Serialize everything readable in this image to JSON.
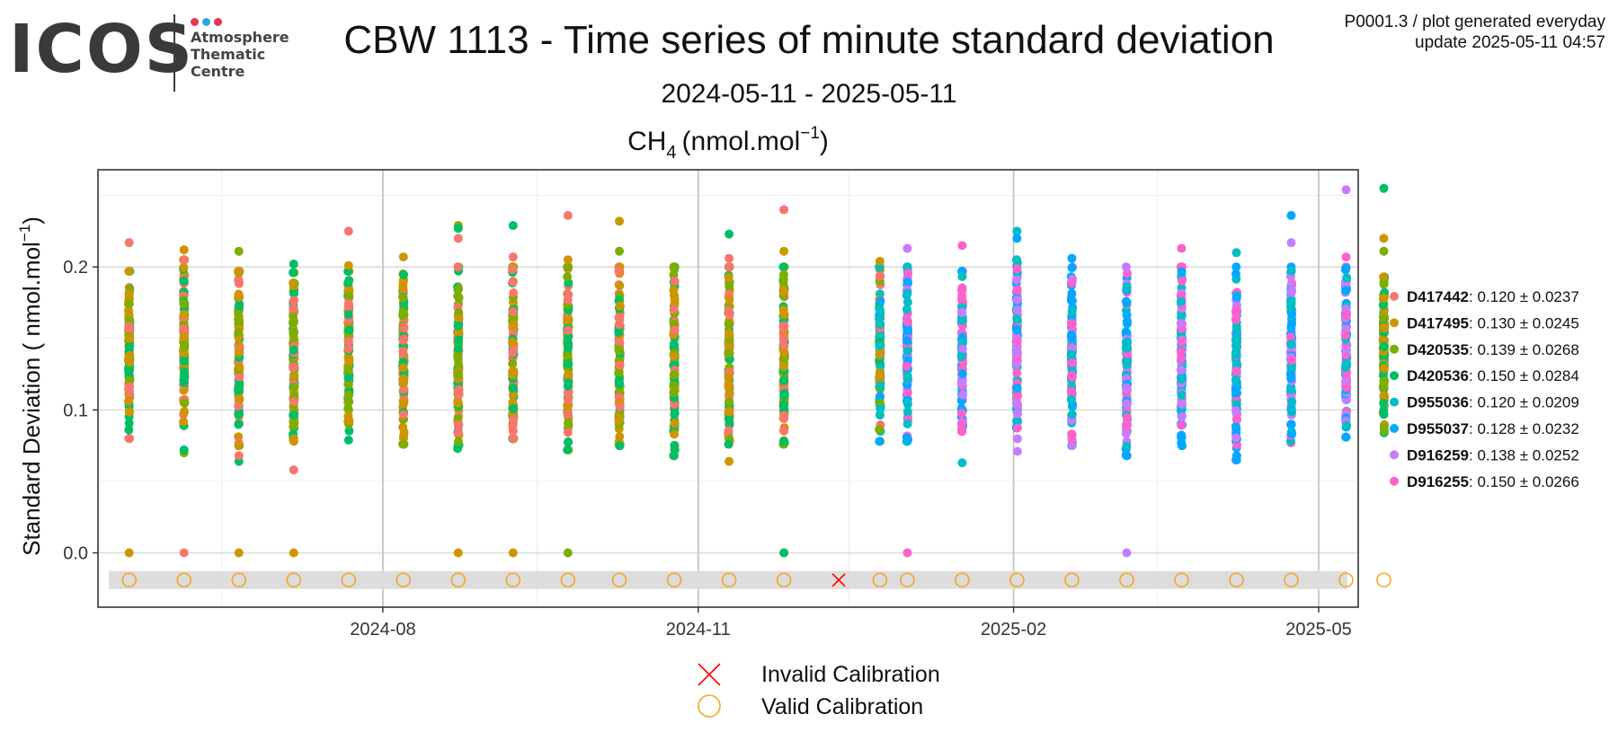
{
  "header": {
    "title": "CBW 1113 - Time series of minute standard deviation",
    "subtitle": "2024-05-11 - 2025-05-11",
    "meta_line1": "P0001.3 / plot generated everyday",
    "meta_line2": "update  2025-05-11 04:57"
  },
  "logo": {
    "wordmark": "ICOS",
    "line1": "Atmosphere",
    "line2": "Thematic",
    "line3": "Centre",
    "dot_colors": [
      "#e8335d",
      "#2ea3e8",
      "#e8335d"
    ]
  },
  "chart_data": {
    "type": "scatter",
    "species": "CH",
    "species_sub": "4",
    "unit_label": "(nmol.mol",
    "unit_sup": "−1",
    "ylabel": "Standard Deviation ( nmol.mol",
    "ylabel_sup": "−1",
    "x_range": [
      "2024-05-11",
      "2025-05-11"
    ],
    "x_ticks": [
      "2024-08-01",
      "2024-11-01",
      "2025-02-01",
      "2025-05-01"
    ],
    "x_tick_labels": [
      "2024-08",
      "2024-11",
      "2025-02",
      "2025-05"
    ],
    "ylim": [
      -0.038,
      0.268
    ],
    "y_ticks": [
      0.0,
      0.1,
      0.2
    ],
    "y_tick_labels": [
      "0.0",
      "0.1",
      "0.2"
    ],
    "grid": true,
    "legend_position": "right",
    "series": [
      {
        "name": "D417442",
        "stats": ": 0.120 ± 0.0237",
        "color": "#F8766D"
      },
      {
        "name": "D417495",
        "stats": ": 0.130 ± 0.0245",
        "color": "#CD9600"
      },
      {
        "name": "D420535",
        "stats": ": 0.139 ± 0.0268",
        "color": "#7CAE00"
      },
      {
        "name": "D420536",
        "stats": ": 0.150 ± 0.0284",
        "color": "#00BE67"
      },
      {
        "name": "D955036",
        "stats": ": 0.120 ± 0.0209",
        "color": "#00BFC4"
      },
      {
        "name": "D955037",
        "stats": ": 0.128 ± 0.0232",
        "color": "#00A9FF"
      },
      {
        "name": "D916259",
        "stats": ": 0.138 ± 0.0252",
        "color": "#C77CFF"
      },
      {
        "name": "D916255",
        "stats": ": 0.150 ± 0.0266",
        "color": "#FF61CC"
      }
    ],
    "measurement_days": [
      {
        "date": "2024-05-19",
        "instruments": [
          "D417442",
          "D417495",
          "D420535",
          "D420536"
        ],
        "low": 0.08,
        "high": 0.197,
        "outliers": [
          0.217,
          0.0
        ]
      },
      {
        "date": "2024-06-04",
        "instruments": [
          "D417442",
          "D417495",
          "D420535",
          "D420536"
        ],
        "low": 0.089,
        "high": 0.205,
        "outliers": [
          0.212,
          0.07,
          0.072,
          0.0
        ]
      },
      {
        "date": "2024-06-20",
        "instruments": [
          "D417442",
          "D417495",
          "D420535",
          "D420536"
        ],
        "low": 0.075,
        "high": 0.197,
        "outliers": [
          0.211,
          0.064,
          0.068,
          0.0
        ]
      },
      {
        "date": "2024-07-06",
        "instruments": [
          "D417442",
          "D417495",
          "D420535",
          "D420536"
        ],
        "low": 0.078,
        "high": 0.196,
        "outliers": [
          0.202,
          0.058,
          0.0
        ]
      },
      {
        "date": "2024-07-22",
        "instruments": [
          "D417442",
          "D417495",
          "D420535",
          "D420536"
        ],
        "low": 0.078,
        "high": 0.197,
        "outliers": [
          0.225,
          0.201
        ]
      },
      {
        "date": "2024-08-07",
        "instruments": [
          "D417442",
          "D417495",
          "D420535",
          "D420536"
        ],
        "low": 0.076,
        "high": 0.2,
        "outliers": [
          0.207
        ]
      },
      {
        "date": "2024-08-23",
        "instruments": [
          "D417442",
          "D417495",
          "D420535",
          "D420536"
        ],
        "low": 0.073,
        "high": 0.2,
        "outliers": [
          0.229,
          0.227,
          0.22,
          0.0
        ]
      },
      {
        "date": "2024-09-08",
        "instruments": [
          "D417442",
          "D417495",
          "D420535",
          "D420536"
        ],
        "low": 0.08,
        "high": 0.2,
        "outliers": [
          0.229,
          0.207,
          0.0
        ]
      },
      {
        "date": "2024-09-24",
        "instruments": [
          "D417442",
          "D417495",
          "D420535",
          "D420536"
        ],
        "low": 0.072,
        "high": 0.2,
        "outliers": [
          0.236,
          0.205,
          0.0
        ]
      },
      {
        "date": "2024-10-09",
        "instruments": [
          "D417442",
          "D417495",
          "D420535",
          "D420536"
        ],
        "low": 0.075,
        "high": 0.2,
        "outliers": [
          0.232,
          0.211
        ]
      },
      {
        "date": "2024-10-25",
        "instruments": [
          "D417442",
          "D417495",
          "D420535",
          "D420536"
        ],
        "low": 0.068,
        "high": 0.2,
        "outliers": [
          0.2
        ]
      },
      {
        "date": "2024-11-10",
        "instruments": [
          "D417442",
          "D417495",
          "D420535",
          "D420536"
        ],
        "low": 0.076,
        "high": 0.2,
        "outliers": [
          0.223,
          0.206,
          0.064
        ]
      },
      {
        "date": "2024-11-26",
        "instruments": [
          "D417442",
          "D417495",
          "D420535",
          "D420536"
        ],
        "low": 0.076,
        "high": 0.2,
        "outliers": [
          0.24,
          0.211,
          0.0,
          0.0
        ]
      },
      {
        "date": "2024-12-24",
        "instruments": [
          "D417442",
          "D417495",
          "D420535",
          "D420536",
          "D955036",
          "D955037"
        ],
        "low": 0.078,
        "high": 0.2,
        "outliers": [
          0.204
        ]
      },
      {
        "date": "2025-01-01",
        "instruments": [
          "D955036",
          "D955037",
          "D916259",
          "D916255"
        ],
        "low": 0.078,
        "high": 0.2,
        "outliers": [
          0.213,
          0.0
        ]
      },
      {
        "date": "2025-01-17",
        "instruments": [
          "D955036",
          "D955037",
          "D916259",
          "D916255"
        ],
        "low": 0.085,
        "high": 0.197,
        "outliers": [
          0.215,
          0.063
        ]
      },
      {
        "date": "2025-02-02",
        "instruments": [
          "D955036",
          "D955037",
          "D916259",
          "D916255"
        ],
        "low": 0.071,
        "high": 0.205,
        "outliers": [
          0.225,
          0.22
        ]
      },
      {
        "date": "2025-02-18",
        "instruments": [
          "D955036",
          "D955037",
          "D916259",
          "D916255"
        ],
        "low": 0.075,
        "high": 0.2,
        "outliers": [
          0.206
        ]
      },
      {
        "date": "2025-03-06",
        "instruments": [
          "D955036",
          "D955037",
          "D916259",
          "D916255"
        ],
        "low": 0.068,
        "high": 0.2,
        "outliers": [
          0.0
        ]
      },
      {
        "date": "2025-03-22",
        "instruments": [
          "D955036",
          "D955037",
          "D916259",
          "D916255"
        ],
        "low": 0.075,
        "high": 0.2,
        "outliers": [
          0.213
        ]
      },
      {
        "date": "2025-04-07",
        "instruments": [
          "D955036",
          "D955037",
          "D916259",
          "D916255"
        ],
        "low": 0.065,
        "high": 0.2,
        "outliers": [
          0.21
        ]
      },
      {
        "date": "2025-04-23",
        "instruments": [
          "D955036",
          "D955037",
          "D916259",
          "D916255"
        ],
        "low": 0.077,
        "high": 0.2,
        "outliers": [
          0.236,
          0.217
        ]
      },
      {
        "date": "2025-05-09",
        "instruments": [
          "D955036",
          "D955037",
          "D916259",
          "D916255"
        ],
        "low": 0.081,
        "high": 0.2,
        "outliers": [
          0.254,
          0.207
        ]
      },
      {
        "date": "2025-05-20",
        "instruments": [
          "D417495",
          "D420535",
          "D420536"
        ],
        "low": 0.084,
        "high": 0.193,
        "outliers": [
          0.255,
          0.22,
          0.211
        ]
      }
    ],
    "calibrations": {
      "valid": [
        "2024-05-19",
        "2024-06-04",
        "2024-06-20",
        "2024-07-06",
        "2024-07-22",
        "2024-08-07",
        "2024-08-23",
        "2024-09-08",
        "2024-09-24",
        "2024-10-09",
        "2024-10-25",
        "2024-11-10",
        "2024-11-26",
        "2024-12-24",
        "2025-01-01",
        "2025-01-17",
        "2025-02-02",
        "2025-02-18",
        "2025-03-06",
        "2025-03-22",
        "2025-04-07",
        "2025-04-23",
        "2025-05-09",
        "2025-05-20"
      ],
      "invalid": [
        "2024-12-12"
      ],
      "y": -0.019
    },
    "calib_legend": [
      {
        "label": "Invalid Calibration",
        "color": "#ff0000",
        "marker": "x"
      },
      {
        "label": "Valid Calibration",
        "color": "#f5a623",
        "marker": "o"
      }
    ]
  }
}
